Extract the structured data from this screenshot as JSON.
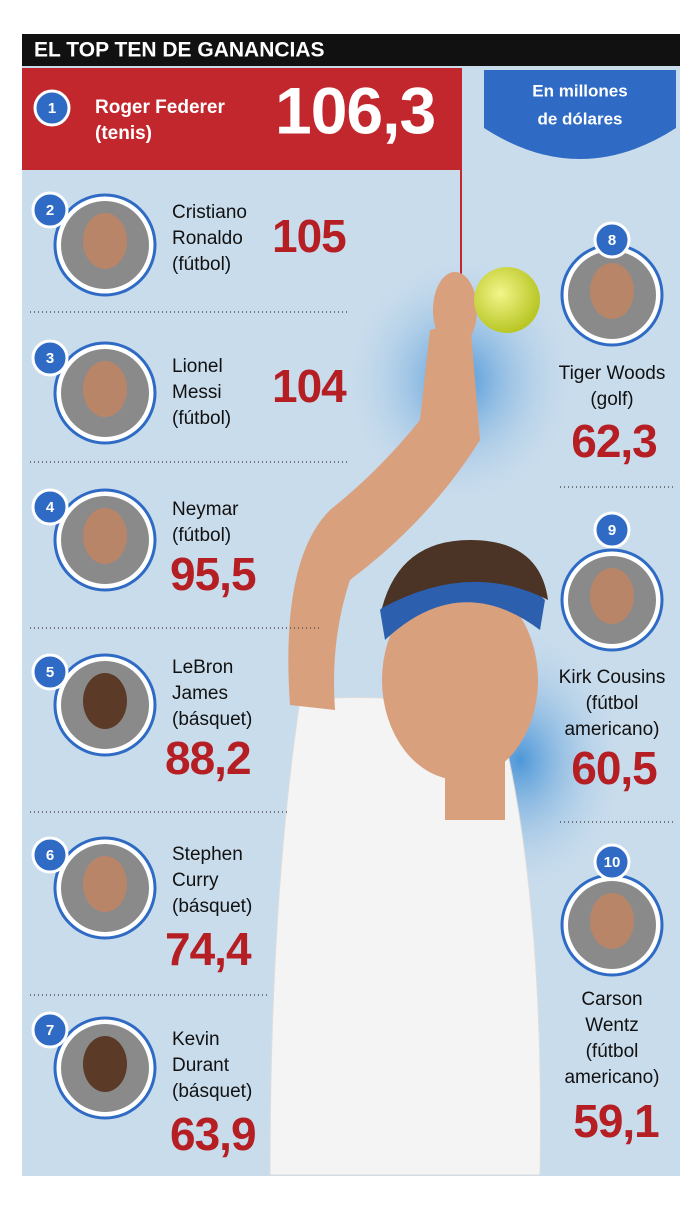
{
  "header": {
    "title": "EL TOP TEN DE GANANCIAS"
  },
  "unit_note": [
    "En millones",
    "de dólares"
  ],
  "entries": [
    {
      "rank": "1",
      "name": [
        "Roger Federer",
        "(tenis)"
      ],
      "value": "106,3"
    },
    {
      "rank": "2",
      "name": [
        "Cristiano",
        "Ronaldo",
        "(fútbol)"
      ],
      "value": "105"
    },
    {
      "rank": "3",
      "name": [
        "Lionel",
        "Messi",
        "(fútbol)"
      ],
      "value": "104"
    },
    {
      "rank": "4",
      "name": [
        "Neymar",
        "(fútbol)"
      ],
      "value": "95,5"
    },
    {
      "rank": "5",
      "name": [
        "LeBron",
        "James",
        "(básquet)"
      ],
      "value": "88,2"
    },
    {
      "rank": "6",
      "name": [
        "Stephen",
        "Curry",
        "(básquet)"
      ],
      "value": "74,4"
    },
    {
      "rank": "7",
      "name": [
        "Kevin",
        "Durant",
        "(básquet)"
      ],
      "value": "63,9"
    },
    {
      "rank": "8",
      "name": [
        "Tiger Woods",
        "(golf)"
      ],
      "value": "62,3"
    },
    {
      "rank": "9",
      "name": [
        "Kirk Cousins",
        "(fútbol",
        "americano)"
      ],
      "value": "60,5"
    },
    {
      "rank": "10",
      "name": [
        "Carson",
        "Wentz",
        "(fútbol",
        "americano)"
      ],
      "value": "59,1"
    }
  ]
}
